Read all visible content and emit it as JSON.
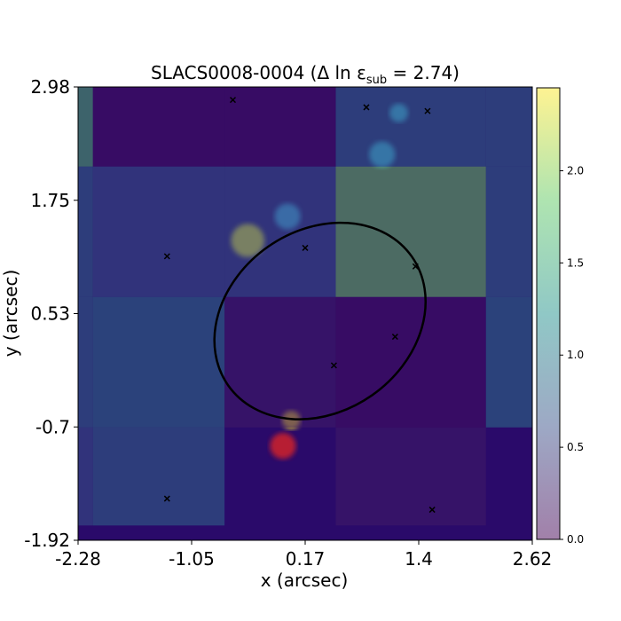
{
  "chart_data": {
    "type": "heatmap",
    "title": "SLACS0008-0004 (Δ ln ε",
    "title_sub": "sub",
    "title_suffix": " =  2.74)",
    "xlabel": "x (arcsec)",
    "ylabel": "y (arcsec)",
    "xlim": [
      -2.28,
      2.62
    ],
    "ylim": [
      -1.92,
      2.98
    ],
    "xticks": [
      "-2.28",
      "-1.05",
      "0.17",
      "1.4",
      "2.62"
    ],
    "yticks": [
      "2.98",
      "1.75",
      "0.53",
      "-0.7",
      "-1.92"
    ],
    "colorbar": {
      "range": [
        0.0,
        2.45
      ],
      "ticks": [
        "0.0",
        "0.5",
        "1.0",
        "1.5",
        "2.0"
      ],
      "colormap": "viridis",
      "alpha": 0.5
    },
    "background_color": "#2a0a6a",
    "subhalo_grid": {
      "x_edges": [
        -2.28,
        -2.12,
        -0.7,
        0.5,
        2.12,
        2.62
      ],
      "y_edges": [
        -1.92,
        -1.76,
        -0.7,
        0.71,
        2.12,
        2.98
      ],
      "values": [
        [
          0.0,
          0.0,
          0.0,
          0.0,
          0.0
        ],
        [
          0.7,
          0.9,
          0.0,
          0.2,
          0.0
        ],
        [
          0.9,
          1.0,
          0.2,
          0.1,
          1.0
        ],
        [
          0.9,
          0.7,
          0.7,
          1.9,
          0.9
        ],
        [
          1.7,
          0.1,
          0.1,
          0.9,
          0.9
        ]
      ]
    },
    "critical_curve": {
      "center": [
        0.33,
        0.45
      ],
      "radii": [
        1.21,
        0.98
      ],
      "angle_deg": 35
    },
    "caustic_markers": [
      [
        -0.61,
        2.84
      ],
      [
        0.83,
        2.76
      ],
      [
        1.49,
        2.72
      ],
      [
        -1.32,
        1.15
      ],
      [
        0.17,
        1.24
      ],
      [
        1.36,
        1.04
      ],
      [
        1.14,
        0.28
      ],
      [
        0.48,
        -0.03
      ],
      [
        -1.32,
        -1.47
      ],
      [
        1.54,
        -1.59
      ]
    ],
    "arc_regions": [
      {
        "center": [
          -0.45,
          1.32
        ],
        "radius": 0.18,
        "value": 0.9
      },
      {
        "center": [
          -0.02,
          1.58
        ],
        "radius": 0.14,
        "value": 0.7
      },
      {
        "center": [
          1.0,
          2.25
        ],
        "radius": 0.14,
        "value": 0.8
      },
      {
        "center": [
          1.18,
          2.7
        ],
        "radius": 0.1,
        "value": 0.8
      },
      {
        "center": [
          -0.07,
          -0.9
        ],
        "radius": 0.14,
        "value": 2.4
      },
      {
        "center": [
          0.02,
          -0.62
        ],
        "radius": 0.1,
        "value": 0.9
      }
    ]
  }
}
